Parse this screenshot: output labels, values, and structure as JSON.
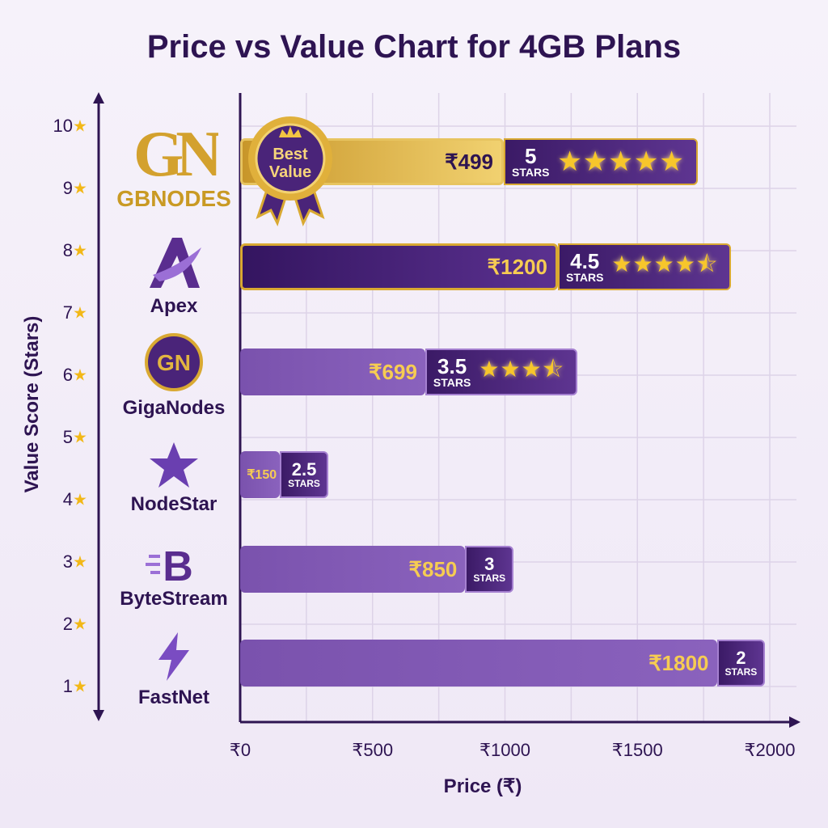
{
  "title": "Price vs Value Chart for 4GB Plans",
  "colors": {
    "primary": "#4a2479",
    "gold": "#d9a932",
    "star": "#f7c62b",
    "text": "#2e1452"
  },
  "best_badge": {
    "line1": "Best",
    "line2": "Value",
    "icon": "crown-icon"
  },
  "chart_data": {
    "type": "bar",
    "orientation": "horizontal",
    "title": "Price vs Value Chart for 4GB Plans",
    "xlabel": "Price (₹)",
    "ylabel": "Value Score (Stars)",
    "xlim": [
      0,
      2000
    ],
    "xticks": [
      "₹0",
      "₹500",
      "₹1000",
      "₹1500",
      "₹2000"
    ],
    "yticks": [
      "1",
      "2",
      "3",
      "4",
      "5",
      "6",
      "7",
      "8",
      "9",
      "10"
    ],
    "grid": true,
    "categories": [
      "GBNODES",
      "Apex",
      "GigaNodes",
      "NodeStar",
      "ByteStream",
      "FastNet"
    ],
    "series": [
      {
        "name": "Price",
        "values": [
          499,
          1200,
          699,
          150,
          850,
          1800
        ],
        "labels": [
          "₹499",
          "₹1200",
          "₹699",
          "₹150",
          "₹850",
          "₹1800"
        ]
      },
      {
        "name": "Stars",
        "values": [
          5,
          4.5,
          3.5,
          2.5,
          3,
          2
        ],
        "labels": [
          "5",
          "4.5",
          "3.5",
          "2.5",
          "3",
          "2"
        ]
      }
    ],
    "stars_unit": "STARS",
    "best_value": "GBNODES"
  }
}
